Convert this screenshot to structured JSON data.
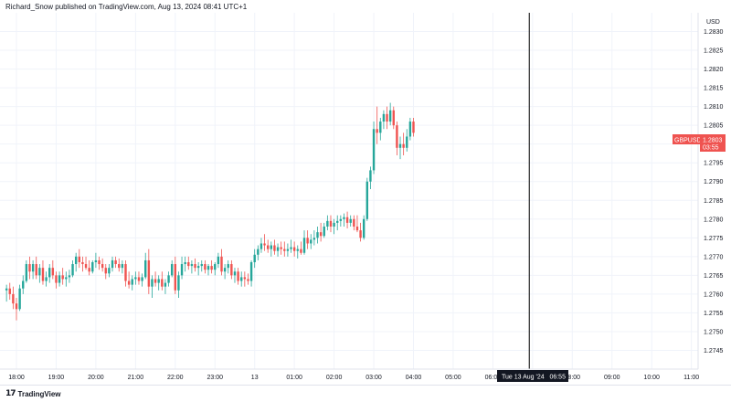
{
  "header": {
    "text": "Richard_Snow published on TradingView.com, Aug 13, 2024 08:41 UTC+1"
  },
  "footer": {
    "brand": "TradingView",
    "logo_glyph": "17"
  },
  "colors": {
    "up": "#26a69a",
    "down": "#ef5350",
    "crosshair": "#000000",
    "axis_bg": "#ffffff",
    "badge_bg": "#ef5350"
  },
  "chart_data": {
    "type": "candlestick",
    "symbol_badge": {
      "symbol": "GBPUSD",
      "price": "1.2803",
      "countdown": "03:55"
    },
    "crosshair_label": "Tue 13 Aug '24   06:55",
    "y_axis": {
      "label": "USD",
      "range": [
        1.274,
        1.2835
      ],
      "ticks": [
        "1.2830",
        "1.2825",
        "1.2820",
        "1.2815",
        "1.2810",
        "1.2805",
        "1.2800",
        "1.2795",
        "1.2790",
        "1.2785",
        "1.2780",
        "1.2775",
        "1.2770",
        "1.2765",
        "1.2760",
        "1.2755",
        "1.2750",
        "1.2745"
      ]
    },
    "x_axis": {
      "ticks": [
        "18:00",
        "19:00",
        "20:00",
        "21:00",
        "22:00",
        "23:00",
        "13",
        "01:00",
        "02:00",
        "03:00",
        "04:00",
        "05:00",
        "06:00",
        "07:00",
        "08:00",
        "09:00",
        "10:00",
        "11:00"
      ]
    },
    "candle_interval_minutes": 5,
    "first_candle": "17:45",
    "candles": [
      [
        1.2761,
        1.27625,
        1.2758,
        1.27615
      ],
      [
        1.27615,
        1.2763,
        1.27585,
        1.276
      ],
      [
        1.276,
        1.2762,
        1.2756,
        1.27575
      ],
      [
        1.27575,
        1.2759,
        1.2753,
        1.2756
      ],
      [
        1.2756,
        1.27625,
        1.27555,
        1.27615
      ],
      [
        1.27615,
        1.2765,
        1.276,
        1.27635
      ],
      [
        1.27635,
        1.2769,
        1.2763,
        1.2768
      ],
      [
        1.2768,
        1.277,
        1.2764,
        1.2766
      ],
      [
        1.2766,
        1.2769,
        1.2764,
        1.2768
      ],
      [
        1.2768,
        1.277,
        1.2764,
        1.2765
      ],
      [
        1.2765,
        1.2768,
        1.2763,
        1.2767
      ],
      [
        1.2767,
        1.2769,
        1.27625,
        1.27635
      ],
      [
        1.27635,
        1.2766,
        1.2762,
        1.27645
      ],
      [
        1.27645,
        1.2768,
        1.2763,
        1.2767
      ],
      [
        1.2767,
        1.2769,
        1.2764,
        1.2765
      ],
      [
        1.2765,
        1.2766,
        1.27615,
        1.2763
      ],
      [
        1.2763,
        1.2766,
        1.2762,
        1.2765
      ],
      [
        1.2765,
        1.2767,
        1.27625,
        1.2764
      ],
      [
        1.2764,
        1.2766,
        1.2762,
        1.27645
      ],
      [
        1.27645,
        1.27665,
        1.2763,
        1.2765
      ],
      [
        1.2765,
        1.2769,
        1.27645,
        1.2768
      ],
      [
        1.2768,
        1.2771,
        1.2766,
        1.277
      ],
      [
        1.277,
        1.2772,
        1.2767,
        1.27685
      ],
      [
        1.27685,
        1.277,
        1.2766,
        1.2768
      ],
      [
        1.2768,
        1.277,
        1.27665,
        1.2767
      ],
      [
        1.2767,
        1.2769,
        1.2765,
        1.2766
      ],
      [
        1.2766,
        1.2769,
        1.27655,
        1.27685
      ],
      [
        1.27685,
        1.2771,
        1.2767,
        1.2769
      ],
      [
        1.2769,
        1.277,
        1.27665,
        1.2768
      ],
      [
        1.2768,
        1.27695,
        1.2766,
        1.2767
      ],
      [
        1.2767,
        1.2768,
        1.2764,
        1.27655
      ],
      [
        1.27655,
        1.2768,
        1.27645,
        1.2767
      ],
      [
        1.2767,
        1.277,
        1.2766,
        1.2769
      ],
      [
        1.2769,
        1.277,
        1.2767,
        1.2768
      ],
      [
        1.2768,
        1.27695,
        1.2766,
        1.2767
      ],
      [
        1.2767,
        1.2769,
        1.27655,
        1.2768
      ],
      [
        1.2768,
        1.2769,
        1.2762,
        1.27635
      ],
      [
        1.27635,
        1.2766,
        1.27615,
        1.27625
      ],
      [
        1.27625,
        1.2765,
        1.2761,
        1.2764
      ],
      [
        1.2764,
        1.2766,
        1.27625,
        1.27645
      ],
      [
        1.27645,
        1.2766,
        1.27625,
        1.27635
      ],
      [
        1.27635,
        1.27655,
        1.2762,
        1.27645
      ],
      [
        1.27645,
        1.2771,
        1.2764,
        1.2769
      ],
      [
        1.2769,
        1.2772,
        1.276,
        1.2762
      ],
      [
        1.2762,
        1.2765,
        1.2759,
        1.2764
      ],
      [
        1.2764,
        1.2766,
        1.2762,
        1.2763
      ],
      [
        1.2763,
        1.2765,
        1.2761,
        1.2764
      ],
      [
        1.2764,
        1.2766,
        1.2761,
        1.2762
      ],
      [
        1.2762,
        1.2764,
        1.276,
        1.2763
      ],
      [
        1.2763,
        1.2766,
        1.2762,
        1.2765
      ],
      [
        1.2765,
        1.2769,
        1.27645,
        1.2768
      ],
      [
        1.2768,
        1.277,
        1.276,
        1.2761
      ],
      [
        1.2761,
        1.2766,
        1.2759,
        1.2765
      ],
      [
        1.2765,
        1.277,
        1.2764,
        1.2768
      ],
      [
        1.2768,
        1.277,
        1.2766,
        1.27685
      ],
      [
        1.27685,
        1.277,
        1.27665,
        1.27675
      ],
      [
        1.27675,
        1.2769,
        1.27655,
        1.2768
      ],
      [
        1.2768,
        1.27695,
        1.2766,
        1.2767
      ],
      [
        1.2767,
        1.27685,
        1.2765,
        1.27675
      ],
      [
        1.27675,
        1.2769,
        1.2766,
        1.2768
      ],
      [
        1.2768,
        1.2769,
        1.27655,
        1.27665
      ],
      [
        1.27665,
        1.2768,
        1.2765,
        1.27675
      ],
      [
        1.27675,
        1.2769,
        1.27655,
        1.27665
      ],
      [
        1.27665,
        1.27685,
        1.2765,
        1.2768
      ],
      [
        1.2768,
        1.2771,
        1.2767,
        1.277
      ],
      [
        1.277,
        1.2772,
        1.2765,
        1.2766
      ],
      [
        1.2766,
        1.2768,
        1.2764,
        1.2767
      ],
      [
        1.2767,
        1.2769,
        1.27655,
        1.2768
      ],
      [
        1.2768,
        1.2769,
        1.2764,
        1.2765
      ],
      [
        1.2765,
        1.2767,
        1.2763,
        1.2766
      ],
      [
        1.2766,
        1.2767,
        1.27625,
        1.27635
      ],
      [
        1.27635,
        1.2766,
        1.2762,
        1.27645
      ],
      [
        1.27645,
        1.2766,
        1.2762,
        1.2764
      ],
      [
        1.2764,
        1.27655,
        1.27625,
        1.27635
      ],
      [
        1.27635,
        1.2769,
        1.2762,
        1.27685
      ],
      [
        1.27685,
        1.2772,
        1.2767,
        1.27705
      ],
      [
        1.27705,
        1.2773,
        1.2769,
        1.2772
      ],
      [
        1.2772,
        1.2775,
        1.2771,
        1.27735
      ],
      [
        1.27735,
        1.2776,
        1.27715,
        1.2773
      ],
      [
        1.2773,
        1.27745,
        1.2771,
        1.2772
      ],
      [
        1.2772,
        1.2774,
        1.277,
        1.2773
      ],
      [
        1.2773,
        1.27745,
        1.27705,
        1.27715
      ],
      [
        1.27715,
        1.27735,
        1.277,
        1.27725
      ],
      [
        1.27725,
        1.2774,
        1.27705,
        1.2772
      ],
      [
        1.2772,
        1.2774,
        1.277,
        1.27715
      ],
      [
        1.27715,
        1.27735,
        1.277,
        1.2772
      ],
      [
        1.2772,
        1.27745,
        1.2771,
        1.27725
      ],
      [
        1.27725,
        1.2774,
        1.277,
        1.27715
      ],
      [
        1.27715,
        1.2773,
        1.27695,
        1.2772
      ],
      [
        1.2772,
        1.2774,
        1.27705,
        1.2771
      ],
      [
        1.2771,
        1.2777,
        1.27705,
        1.2775
      ],
      [
        1.2775,
        1.2777,
        1.2772,
        1.27735
      ],
      [
        1.27735,
        1.2776,
        1.2772,
        1.27745
      ],
      [
        1.27745,
        1.2777,
        1.2773,
        1.2775
      ],
      [
        1.2775,
        1.2778,
        1.27735,
        1.27765
      ],
      [
        1.27765,
        1.2779,
        1.2774,
        1.27755
      ],
      [
        1.27755,
        1.2779,
        1.2775,
        1.2778
      ],
      [
        1.2778,
        1.2781,
        1.2777,
        1.27795
      ],
      [
        1.27795,
        1.2781,
        1.27765,
        1.2778
      ],
      [
        1.2778,
        1.278,
        1.2776,
        1.2779
      ],
      [
        1.2779,
        1.2781,
        1.2777,
        1.27795
      ],
      [
        1.27795,
        1.2781,
        1.2778,
        1.278
      ],
      [
        1.278,
        1.27815,
        1.2778,
        1.27805
      ],
      [
        1.27805,
        1.2782,
        1.27775,
        1.2779
      ],
      [
        1.2779,
        1.2781,
        1.2778,
        1.278
      ],
      [
        1.278,
        1.2781,
        1.2777,
        1.2778
      ],
      [
        1.2778,
        1.2781,
        1.27765,
        1.2777
      ],
      [
        1.2777,
        1.2779,
        1.2774,
        1.2775
      ],
      [
        1.2775,
        1.2781,
        1.27745,
        1.278
      ],
      [
        1.278,
        1.2791,
        1.27795,
        1.279
      ],
      [
        1.279,
        1.2794,
        1.2788,
        1.2793
      ],
      [
        1.2793,
        1.2806,
        1.2792,
        1.2804
      ],
      [
        1.2804,
        1.281,
        1.28,
        1.2803
      ],
      [
        1.2803,
        1.2807,
        1.2801,
        1.2806
      ],
      [
        1.2806,
        1.2809,
        1.2804,
        1.2808
      ],
      [
        1.2808,
        1.281,
        1.2804,
        1.2806
      ],
      [
        1.2806,
        1.2811,
        1.2805,
        1.2809
      ],
      [
        1.2809,
        1.281,
        1.2804,
        1.2805
      ],
      [
        1.2805,
        1.2806,
        1.2797,
        1.2799
      ],
      [
        1.2799,
        1.2802,
        1.2796,
        1.28
      ],
      [
        1.28,
        1.2803,
        1.2797,
        1.2799
      ],
      [
        1.2799,
        1.2804,
        1.2798,
        1.2802
      ],
      [
        1.2802,
        1.2807,
        1.2801,
        1.2806
      ],
      [
        1.2806,
        1.2807,
        1.2802,
        1.2803
      ]
    ]
  }
}
